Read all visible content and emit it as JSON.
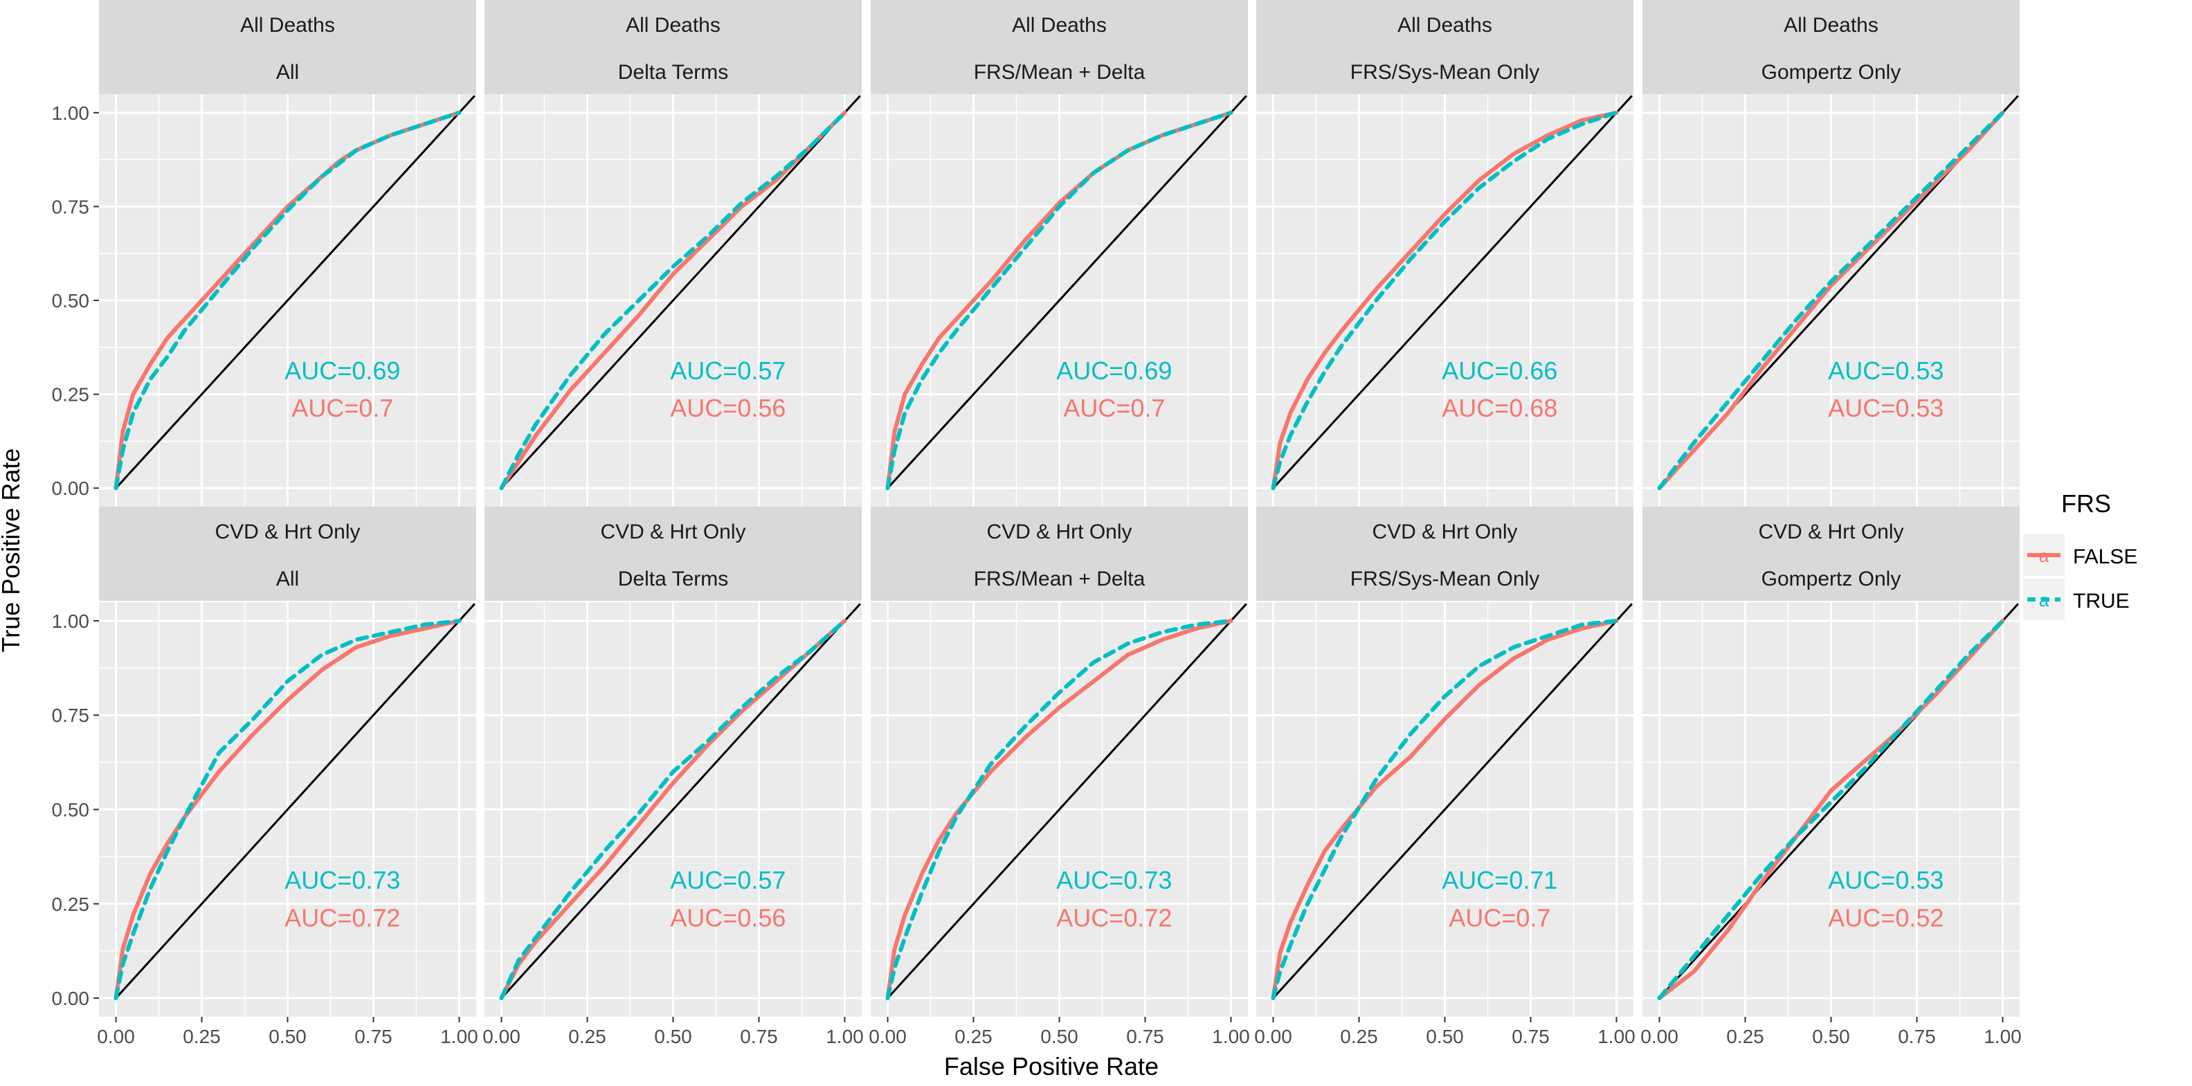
{
  "xlabel": "False Positive Rate",
  "ylabel": "True Positive Rate",
  "legend": {
    "title": "FRS",
    "entries": [
      {
        "name": "FALSE",
        "color": "#F8766D",
        "dash": "solid"
      },
      {
        "name": "TRUE",
        "color": "#00BFC4",
        "dash": "dashed"
      }
    ],
    "position": "right"
  },
  "colors": {
    "panel_bg": "#EBEBEB",
    "strip_bg": "#D9D9D9",
    "grid": "#FFFFFF",
    "diagonal": "#000000",
    "axis_text": "#4D4D4D"
  },
  "axis": {
    "x_ticks": [
      "0.00",
      "0.25",
      "0.50",
      "0.75",
      "1.00"
    ],
    "y_ticks": [
      "0.00",
      "0.25",
      "0.50",
      "0.75",
      "1.00"
    ]
  },
  "chart_data": {
    "type": "line",
    "xlim": [
      0,
      1
    ],
    "ylim": [
      0,
      1
    ],
    "grid": true,
    "panels": [
      {
        "row": "All Deaths",
        "col": "All",
        "auc": {
          "TRUE": "AUC=0.69",
          "FALSE": "AUC=0.7"
        },
        "series": [
          {
            "name": "FALSE",
            "x": [
              0,
              0.02,
              0.05,
              0.1,
              0.15,
              0.2,
              0.3,
              0.4,
              0.5,
              0.6,
              0.65,
              0.7,
              0.8,
              0.9,
              1
            ],
            "y": [
              0,
              0.15,
              0.25,
              0.33,
              0.4,
              0.45,
              0.55,
              0.65,
              0.75,
              0.83,
              0.87,
              0.9,
              0.94,
              0.97,
              1
            ]
          },
          {
            "name": "TRUE",
            "x": [
              0,
              0.02,
              0.05,
              0.1,
              0.15,
              0.2,
              0.3,
              0.4,
              0.5,
              0.6,
              0.7,
              0.8,
              0.9,
              1
            ],
            "y": [
              0,
              0.1,
              0.2,
              0.29,
              0.35,
              0.42,
              0.53,
              0.64,
              0.74,
              0.83,
              0.9,
              0.94,
              0.97,
              1
            ]
          }
        ]
      },
      {
        "row": "All Deaths",
        "col": "Delta Terms",
        "auc": {
          "TRUE": "AUC=0.57",
          "FALSE": "AUC=0.56"
        },
        "series": [
          {
            "name": "FALSE",
            "x": [
              0,
              0.05,
              0.1,
              0.2,
              0.3,
              0.4,
              0.5,
              0.6,
              0.7,
              0.8,
              0.9,
              1
            ],
            "y": [
              0,
              0.07,
              0.14,
              0.26,
              0.36,
              0.46,
              0.57,
              0.66,
              0.75,
              0.82,
              0.91,
              1
            ]
          },
          {
            "name": "TRUE",
            "x": [
              0,
              0.05,
              0.1,
              0.2,
              0.3,
              0.4,
              0.5,
              0.6,
              0.7,
              0.8,
              0.9,
              1
            ],
            "y": [
              0,
              0.09,
              0.17,
              0.3,
              0.41,
              0.5,
              0.59,
              0.67,
              0.76,
              0.83,
              0.91,
              1
            ]
          }
        ]
      },
      {
        "row": "All Deaths",
        "col": "FRS/Mean + Delta",
        "auc": {
          "TRUE": "AUC=0.69",
          "FALSE": "AUC=0.7"
        },
        "series": [
          {
            "name": "FALSE",
            "x": [
              0,
              0.02,
              0.05,
              0.1,
              0.15,
              0.2,
              0.3,
              0.4,
              0.5,
              0.6,
              0.7,
              0.8,
              0.9,
              1
            ],
            "y": [
              0,
              0.15,
              0.25,
              0.33,
              0.4,
              0.45,
              0.55,
              0.66,
              0.76,
              0.84,
              0.9,
              0.94,
              0.97,
              1
            ]
          },
          {
            "name": "TRUE",
            "x": [
              0,
              0.02,
              0.05,
              0.1,
              0.15,
              0.2,
              0.3,
              0.4,
              0.5,
              0.6,
              0.7,
              0.8,
              0.9,
              1
            ],
            "y": [
              0,
              0.1,
              0.2,
              0.29,
              0.36,
              0.42,
              0.53,
              0.64,
              0.75,
              0.84,
              0.9,
              0.94,
              0.97,
              1
            ]
          }
        ]
      },
      {
        "row": "All Deaths",
        "col": "FRS/Sys-Mean Only",
        "auc": {
          "TRUE": "AUC=0.66",
          "FALSE": "AUC=0.68"
        },
        "series": [
          {
            "name": "FALSE",
            "x": [
              0,
              0.02,
              0.05,
              0.1,
              0.15,
              0.2,
              0.3,
              0.4,
              0.5,
              0.6,
              0.7,
              0.8,
              0.9,
              1
            ],
            "y": [
              0,
              0.12,
              0.2,
              0.29,
              0.36,
              0.42,
              0.53,
              0.63,
              0.73,
              0.82,
              0.89,
              0.94,
              0.98,
              1
            ]
          },
          {
            "name": "TRUE",
            "x": [
              0,
              0.02,
              0.05,
              0.1,
              0.15,
              0.2,
              0.3,
              0.4,
              0.5,
              0.6,
              0.7,
              0.8,
              0.9,
              1
            ],
            "y": [
              0,
              0.07,
              0.14,
              0.23,
              0.31,
              0.38,
              0.5,
              0.61,
              0.71,
              0.8,
              0.87,
              0.93,
              0.97,
              1
            ]
          }
        ]
      },
      {
        "row": "All Deaths",
        "col": "Gompertz Only",
        "auc": {
          "TRUE": "AUC=0.53",
          "FALSE": "AUC=0.53"
        },
        "series": [
          {
            "name": "FALSE",
            "x": [
              0,
              0.1,
              0.2,
              0.3,
              0.4,
              0.5,
              0.6,
              0.7,
              0.8,
              0.9,
              1
            ],
            "y": [
              0,
              0.1,
              0.2,
              0.32,
              0.43,
              0.54,
              0.63,
              0.72,
              0.81,
              0.9,
              1
            ]
          },
          {
            "name": "TRUE",
            "x": [
              0,
              0.1,
              0.2,
              0.3,
              0.4,
              0.5,
              0.6,
              0.7,
              0.8,
              0.9,
              1
            ],
            "y": [
              0,
              0.12,
              0.23,
              0.34,
              0.45,
              0.55,
              0.64,
              0.73,
              0.82,
              0.91,
              1
            ]
          }
        ]
      },
      {
        "row": "CVD & Hrt Only",
        "col": "All",
        "auc": {
          "TRUE": "AUC=0.73",
          "FALSE": "AUC=0.72"
        },
        "series": [
          {
            "name": "FALSE",
            "x": [
              0,
              0.02,
              0.05,
              0.1,
              0.15,
              0.2,
              0.3,
              0.4,
              0.5,
              0.6,
              0.7,
              0.8,
              0.9,
              1
            ],
            "y": [
              0,
              0.13,
              0.22,
              0.33,
              0.41,
              0.48,
              0.6,
              0.7,
              0.79,
              0.87,
              0.93,
              0.96,
              0.98,
              1
            ]
          },
          {
            "name": "TRUE",
            "x": [
              0,
              0.02,
              0.05,
              0.1,
              0.15,
              0.2,
              0.3,
              0.4,
              0.5,
              0.6,
              0.7,
              0.8,
              0.9,
              1
            ],
            "y": [
              0,
              0.09,
              0.17,
              0.29,
              0.39,
              0.48,
              0.65,
              0.74,
              0.84,
              0.91,
              0.95,
              0.97,
              0.99,
              1
            ]
          }
        ]
      },
      {
        "row": "CVD & Hrt Only",
        "col": "Delta Terms",
        "auc": {
          "TRUE": "AUC=0.57",
          "FALSE": "AUC=0.56"
        },
        "series": [
          {
            "name": "FALSE",
            "x": [
              0,
              0.05,
              0.1,
              0.2,
              0.3,
              0.4,
              0.5,
              0.6,
              0.7,
              0.8,
              0.9,
              1
            ],
            "y": [
              0,
              0.09,
              0.15,
              0.25,
              0.35,
              0.46,
              0.57,
              0.67,
              0.76,
              0.84,
              0.92,
              1
            ]
          },
          {
            "name": "TRUE",
            "x": [
              0,
              0.05,
              0.1,
              0.2,
              0.3,
              0.4,
              0.5,
              0.6,
              0.7,
              0.8,
              0.9,
              1
            ],
            "y": [
              0,
              0.1,
              0.16,
              0.28,
              0.39,
              0.49,
              0.6,
              0.68,
              0.77,
              0.85,
              0.92,
              1
            ]
          }
        ]
      },
      {
        "row": "CVD & Hrt Only",
        "col": "FRS/Mean + Delta",
        "auc": {
          "TRUE": "AUC=0.73",
          "FALSE": "AUC=0.72"
        },
        "series": [
          {
            "name": "FALSE",
            "x": [
              0,
              0.02,
              0.05,
              0.1,
              0.15,
              0.2,
              0.3,
              0.4,
              0.5,
              0.6,
              0.7,
              0.8,
              0.9,
              1
            ],
            "y": [
              0,
              0.13,
              0.22,
              0.33,
              0.42,
              0.49,
              0.6,
              0.69,
              0.77,
              0.84,
              0.91,
              0.95,
              0.98,
              1
            ]
          },
          {
            "name": "TRUE",
            "x": [
              0,
              0.02,
              0.05,
              0.1,
              0.15,
              0.2,
              0.3,
              0.4,
              0.5,
              0.6,
              0.7,
              0.8,
              0.9,
              1
            ],
            "y": [
              0,
              0.08,
              0.16,
              0.28,
              0.39,
              0.48,
              0.62,
              0.72,
              0.81,
              0.89,
              0.94,
              0.97,
              0.99,
              1
            ]
          }
        ]
      },
      {
        "row": "CVD & Hrt Only",
        "col": "FRS/Sys-Mean Only",
        "auc": {
          "TRUE": "AUC=0.71",
          "FALSE": "AUC=0.7"
        },
        "series": [
          {
            "name": "FALSE",
            "x": [
              0,
              0.02,
              0.05,
              0.1,
              0.15,
              0.2,
              0.3,
              0.4,
              0.5,
              0.6,
              0.7,
              0.8,
              0.9,
              1
            ],
            "y": [
              0,
              0.12,
              0.2,
              0.3,
              0.39,
              0.45,
              0.56,
              0.64,
              0.74,
              0.83,
              0.9,
              0.95,
              0.98,
              1
            ]
          },
          {
            "name": "TRUE",
            "x": [
              0,
              0.02,
              0.05,
              0.1,
              0.15,
              0.2,
              0.3,
              0.4,
              0.5,
              0.6,
              0.7,
              0.8,
              0.9,
              1
            ],
            "y": [
              0,
              0.07,
              0.14,
              0.25,
              0.34,
              0.43,
              0.58,
              0.7,
              0.8,
              0.88,
              0.93,
              0.96,
              0.99,
              1
            ]
          }
        ]
      },
      {
        "row": "CVD & Hrt Only",
        "col": "Gompertz Only",
        "auc": {
          "TRUE": "AUC=0.53",
          "FALSE": "AUC=0.52"
        },
        "series": [
          {
            "name": "FALSE",
            "x": [
              0,
              0.1,
              0.2,
              0.3,
              0.4,
              0.5,
              0.6,
              0.7,
              0.8,
              0.9,
              1
            ],
            "y": [
              0,
              0.07,
              0.18,
              0.31,
              0.43,
              0.55,
              0.63,
              0.71,
              0.8,
              0.9,
              1
            ]
          },
          {
            "name": "TRUE",
            "x": [
              0,
              0.1,
              0.2,
              0.3,
              0.4,
              0.5,
              0.6,
              0.7,
              0.8,
              0.9,
              1
            ],
            "y": [
              0,
              0.11,
              0.22,
              0.33,
              0.43,
              0.52,
              0.61,
              0.71,
              0.81,
              0.91,
              1
            ]
          }
        ]
      }
    ]
  }
}
